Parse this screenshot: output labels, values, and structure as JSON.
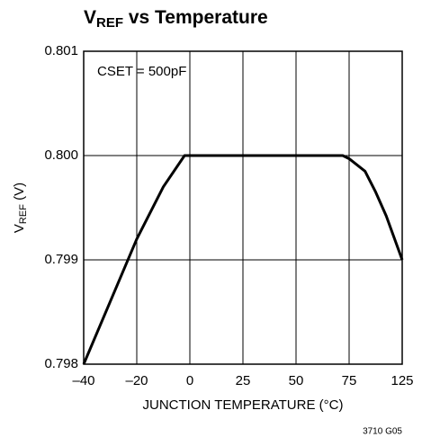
{
  "chart_data": {
    "type": "line",
    "title": {
      "main": "V",
      "sub": "REF",
      "rest": " vs Temperature"
    },
    "y_label": {
      "main": "V",
      "sub": "REF",
      "rest": " (V)"
    },
    "x_label": "JUNCTION TEMPERATURE (°C)",
    "annotation": "CSET = 500pF",
    "footnote": "3710 G05",
    "x": [
      -40,
      -30,
      -20,
      -10,
      -2,
      0,
      25,
      50,
      72,
      75,
      90,
      100,
      110,
      125
    ],
    "series": [
      {
        "color": "#000000",
        "values": [
          0.798,
          0.7986,
          0.7992,
          0.7997,
          0.8,
          0.8,
          0.8,
          0.8,
          0.8,
          0.79997,
          0.79985,
          0.79965,
          0.79942,
          0.799
        ]
      }
    ],
    "xlim": [
      -40,
      125
    ],
    "xticks": [
      {
        "value": -40,
        "label": "–40"
      },
      {
        "value": -20,
        "label": "–20"
      },
      0,
      25,
      50,
      75,
      125
    ],
    "ylim": [
      0.798,
      0.801
    ],
    "yticks": [
      0.798,
      0.799,
      {
        "value": 0.8,
        "label": "0.800"
      },
      0.801
    ],
    "grid": true
  }
}
